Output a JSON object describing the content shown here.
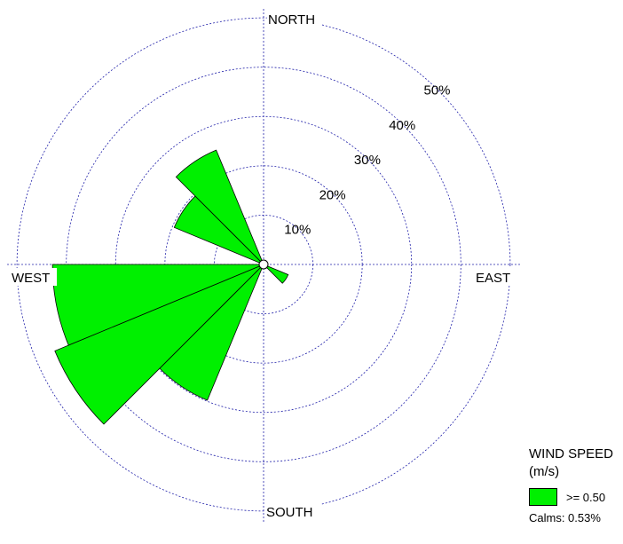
{
  "chart_data": {
    "type": "wind-rose",
    "directions": [
      {
        "name": "N",
        "value": 0
      },
      {
        "name": "NNE",
        "value": 0
      },
      {
        "name": "NE",
        "value": 0
      },
      {
        "name": "ENE",
        "value": 0
      },
      {
        "name": "E",
        "value": 0
      },
      {
        "name": "ESE",
        "value": 5.4
      },
      {
        "name": "SE",
        "value": 0
      },
      {
        "name": "SSE",
        "value": 0
      },
      {
        "name": "S",
        "value": 0
      },
      {
        "name": "SSW",
        "value": 29.8
      },
      {
        "name": "SW",
        "value": 45.8
      },
      {
        "name": "WSW",
        "value": 42.8
      },
      {
        "name": "W",
        "value": 0
      },
      {
        "name": "WNW",
        "value": 19.6
      },
      {
        "name": "NW",
        "value": 25.1
      },
      {
        "name": "NNW",
        "value": 0
      }
    ],
    "rings": [
      10,
      20,
      30,
      40,
      50
    ],
    "ring_labels": [
      "10%",
      "20%",
      "30%",
      "40%",
      "50%"
    ],
    "rmax": 52,
    "compass": {
      "north": "NORTH",
      "east": "EAST",
      "south": "SOUTH",
      "west": "WEST"
    },
    "colors": {
      "petal": "#00f000",
      "ring": "#2222aa"
    },
    "legend": {
      "title_line1": "WIND SPEED",
      "title_line2": "(m/s)",
      "entries": [
        {
          "label": ">= 0.50",
          "color": "#00f000"
        }
      ],
      "calms": "Calms: 0.53%"
    }
  }
}
